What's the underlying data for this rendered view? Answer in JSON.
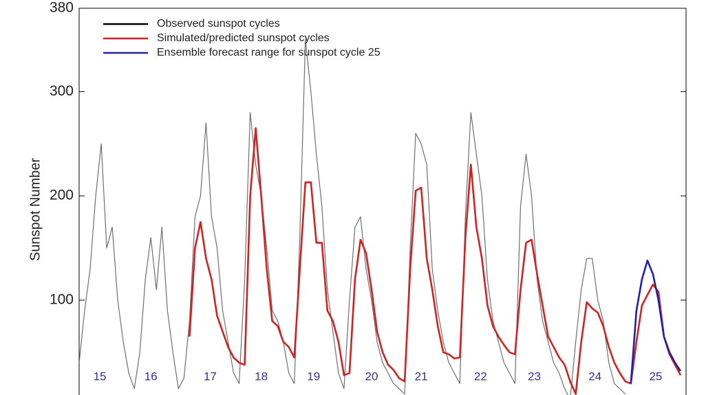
{
  "chart_data": {
    "type": "line",
    "y_label": "Sunspot Number",
    "categories": [
      null,
      null,
      null,
      null,
      null,
      null,
      null,
      null,
      null,
      null,
      null,
      null,
      null,
      null,
      null,
      null,
      null,
      null,
      null,
      null,
      null,
      null,
      null,
      null,
      null,
      null,
      null,
      null,
      null,
      null,
      null,
      null,
      null,
      null,
      null,
      null,
      null,
      null,
      null,
      null,
      null,
      null,
      null,
      null,
      null,
      null,
      null,
      null,
      null,
      null,
      null,
      null,
      null,
      null,
      null,
      null,
      null,
      null,
      null,
      null,
      null,
      null,
      null,
      null,
      null,
      null,
      null,
      null,
      null,
      null,
      null,
      null,
      null,
      null,
      null,
      null,
      null,
      null,
      null,
      null,
      null,
      null,
      null,
      null,
      null,
      null,
      null,
      null,
      null,
      null,
      null,
      null,
      null,
      null,
      null,
      null,
      null,
      null,
      null,
      null,
      null,
      null,
      null,
      null,
      null,
      null,
      null,
      null,
      null,
      null
    ],
    "series": [
      {
        "name": "Observed sunspot cycles",
        "color": "#555555",
        "legend_color": "#000000",
        "values": [
          40,
          90,
          130,
          200,
          250,
          150,
          170,
          100,
          60,
          30,
          15,
          50,
          120,
          160,
          110,
          170,
          90,
          50,
          15,
          25,
          80,
          180,
          200,
          270,
          180,
          150,
          90,
          60,
          30,
          20,
          120,
          280,
          230,
          200,
          150,
          90,
          80,
          60,
          30,
          20,
          160,
          350,
          300,
          240,
          190,
          110,
          70,
          30,
          15,
          100,
          170,
          180,
          130,
          100,
          60,
          40,
          30,
          20,
          15,
          10,
          150,
          260,
          250,
          230,
          130,
          90,
          60,
          40,
          30,
          20,
          180,
          280,
          240,
          200,
          120,
          80,
          60,
          40,
          30,
          20,
          190,
          240,
          200,
          120,
          80,
          60,
          40,
          30,
          15,
          5,
          60,
          110,
          140,
          140,
          100,
          80,
          40,
          20,
          15,
          10,
          null,
          null,
          null,
          null,
          null,
          null,
          null,
          null,
          null,
          null
        ]
      },
      {
        "name": "Simulated/predicted sunspot cycles",
        "color": "#d42020",
        "values": [
          null,
          null,
          null,
          null,
          null,
          null,
          null,
          null,
          null,
          null,
          null,
          null,
          null,
          null,
          null,
          null,
          null,
          null,
          null,
          null,
          65,
          150,
          175,
          140,
          120,
          85,
          70,
          55,
          45,
          40,
          38,
          200,
          265,
          200,
          130,
          80,
          75,
          60,
          55,
          45,
          130,
          213,
          213,
          155,
          155,
          90,
          80,
          60,
          28,
          30,
          120,
          158,
          145,
          110,
          70,
          50,
          38,
          33,
          25,
          22,
          130,
          205,
          208,
          140,
          110,
          75,
          50,
          48,
          44,
          45,
          160,
          230,
          170,
          140,
          95,
          75,
          65,
          57,
          50,
          48,
          110,
          155,
          158,
          125,
          95,
          65,
          55,
          45,
          38,
          22,
          10,
          60,
          98,
          92,
          88,
          75,
          55,
          40,
          30,
          22,
          20,
          60,
          95,
          105,
          115,
          108,
          65,
          48,
          38,
          28
        ]
      },
      {
        "name": "Ensemble forecast range for sunspot cycle 25",
        "color": "#2020b0",
        "values": [
          null,
          null,
          null,
          null,
          null,
          null,
          null,
          null,
          null,
          null,
          null,
          null,
          null,
          null,
          null,
          null,
          null,
          null,
          null,
          null,
          null,
          null,
          null,
          null,
          null,
          null,
          null,
          null,
          null,
          null,
          null,
          null,
          null,
          null,
          null,
          null,
          null,
          null,
          null,
          null,
          null,
          null,
          null,
          null,
          null,
          null,
          null,
          null,
          null,
          null,
          null,
          null,
          null,
          null,
          null,
          null,
          null,
          null,
          null,
          null,
          null,
          null,
          null,
          null,
          null,
          null,
          null,
          null,
          null,
          null,
          null,
          null,
          null,
          null,
          null,
          null,
          null,
          null,
          null,
          null,
          null,
          null,
          null,
          null,
          null,
          null,
          null,
          null,
          null,
          null,
          null,
          null,
          null,
          null,
          null,
          null,
          null,
          null,
          null,
          null,
          20,
          90,
          120,
          138,
          125,
          100,
          65,
          50,
          40,
          32
        ]
      }
    ],
    "annotations": [
      {
        "text": "15",
        "x": 3.75,
        "y": 26
      },
      {
        "text": "16",
        "x": 13,
        "y": 26
      },
      {
        "text": "17",
        "x": 23.75,
        "y": 26
      },
      {
        "text": "18",
        "x": 33,
        "y": 26
      },
      {
        "text": "19",
        "x": 42.5,
        "y": 26
      },
      {
        "text": "20",
        "x": 53,
        "y": 26
      },
      {
        "text": "21",
        "x": 62,
        "y": 26
      },
      {
        "text": "22",
        "x": 72.75,
        "y": 26
      },
      {
        "text": "23",
        "x": 82.5,
        "y": 26
      },
      {
        "text": "24",
        "x": 93.5,
        "y": 26
      },
      {
        "text": "25",
        "x": 104.5,
        "y": 26
      }
    ],
    "annotation_color": "#3030a0",
    "ylim": [
      9,
      380
    ],
    "yticks": [
      100,
      200,
      300,
      380
    ],
    "legend": "upper left"
  }
}
